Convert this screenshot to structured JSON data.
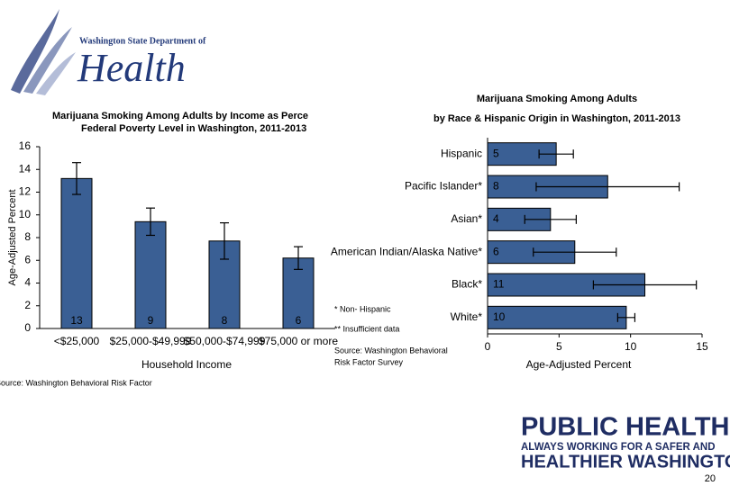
{
  "header": {
    "logo_small": "Washington State Department of",
    "logo_big": "Health"
  },
  "chart_data": [
    {
      "type": "bar",
      "title": [
        "Marijuana Smoking Among Adults by Income as Perce",
        "Federal Poverty Level in Washington, 2011-2013"
      ],
      "categories": [
        "<$25,000",
        "$25,000-$49,999",
        "$50,000-$74,999",
        "$75,000 or more"
      ],
      "values": [
        13.2,
        9.4,
        7.7,
        6.2
      ],
      "value_labels": [
        "13",
        "9",
        "8",
        "6"
      ],
      "errors": [
        1.4,
        1.2,
        1.6,
        1.0
      ],
      "color": "#3a5f94",
      "ylim": [
        0,
        16
      ],
      "yticks": [
        0,
        2,
        4,
        6,
        8,
        10,
        12,
        14,
        16
      ],
      "y_label": "Age-Adjusted Percent",
      "x_label": "Household Income",
      "source": "Source: Washington Behavioral Risk Factor"
    },
    {
      "type": "hbar",
      "title": [
        "Marijuana Smoking Among Adults",
        "by Race & Hispanic Origin in Washington, 2011-2013"
      ],
      "categories": [
        "Hispanic",
        "Pacific Islander*",
        "Asian*",
        "American Indian/Alaska Native*",
        "Black*",
        "White*"
      ],
      "values": [
        4.8,
        8.4,
        4.4,
        6.1,
        11.0,
        9.7
      ],
      "value_labels": [
        "5",
        "8",
        "4",
        "6",
        "11",
        "10"
      ],
      "errors": [
        1.2,
        5.0,
        1.8,
        2.9,
        3.6,
        0.6
      ],
      "color": "#3a5f94",
      "xlim": [
        0,
        15
      ],
      "xticks": [
        0,
        5,
        10,
        15
      ],
      "x_label": "Age-Adjusted Percent",
      "notes": [
        "* Non- Hispanic",
        "** Insufficient data"
      ],
      "source": [
        "Source: Washington Behavioral",
        "Risk Factor Survey"
      ]
    }
  ],
  "footer": {
    "logo_lines": [
      "PUBLIC HEALTH",
      "ALWAYS WORKING FOR A SAFER AND",
      "HEALTHIER WASHINGTON"
    ],
    "page_number": "20"
  }
}
